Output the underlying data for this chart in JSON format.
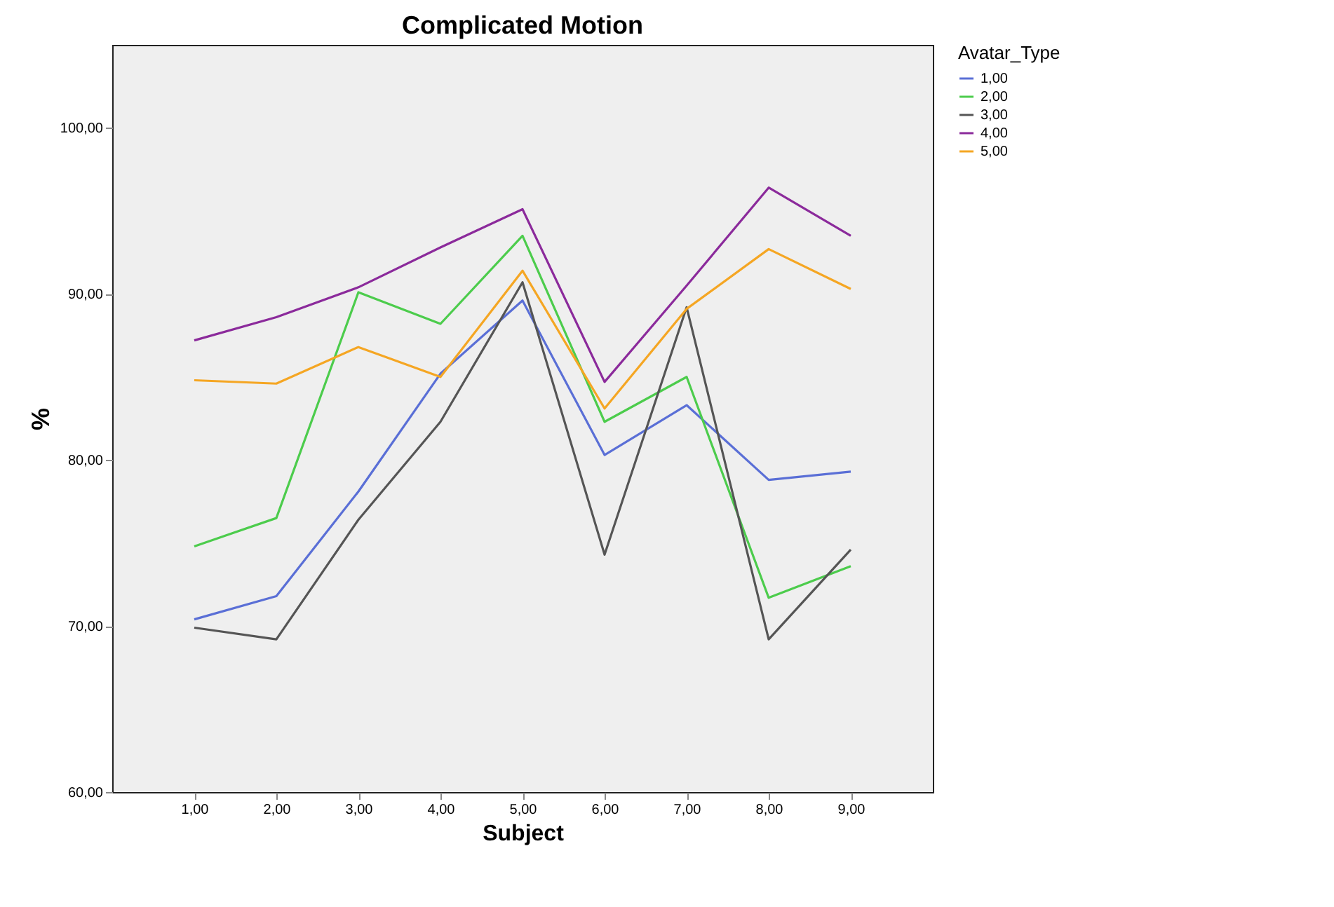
{
  "chart_data": {
    "type": "line",
    "title": "Complicated Motion",
    "xlabel": "Subject",
    "ylabel": "%",
    "legend_title": "Avatar_Type",
    "legend": "right",
    "categories": [
      "1,00",
      "2,00",
      "3,00",
      "4,00",
      "5,00",
      "6,00",
      "7,00",
      "8,00",
      "9,00"
    ],
    "ylim": [
      60,
      105
    ],
    "yticks": [
      {
        "value": 60,
        "label": "60,00"
      },
      {
        "value": 70,
        "label": "70,00"
      },
      {
        "value": 80,
        "label": "80,00"
      },
      {
        "value": 90,
        "label": "90,00"
      },
      {
        "value": 100,
        "label": "100,00"
      }
    ],
    "series": [
      {
        "name": "1,00",
        "color": "#5a6fd6",
        "values": [
          70.4,
          71.8,
          78.1,
          85.2,
          89.6,
          80.3,
          83.3,
          78.8,
          79.3
        ]
      },
      {
        "name": "2,00",
        "color": "#4ccc4c",
        "values": [
          74.8,
          76.5,
          90.1,
          88.2,
          93.5,
          82.3,
          85.0,
          71.7,
          73.6
        ]
      },
      {
        "name": "3,00",
        "color": "#555555",
        "values": [
          69.9,
          69.2,
          76.4,
          82.3,
          90.7,
          74.3,
          89.2,
          69.2,
          74.6
        ]
      },
      {
        "name": "4,00",
        "color": "#8b2a9b",
        "values": [
          87.2,
          88.6,
          90.4,
          92.8,
          95.1,
          84.7,
          90.5,
          96.4,
          93.5
        ]
      },
      {
        "name": "5,00",
        "color": "#f5a623",
        "values": [
          84.8,
          84.6,
          86.8,
          85.0,
          91.4,
          83.1,
          89.1,
          92.7,
          90.3
        ]
      }
    ]
  }
}
